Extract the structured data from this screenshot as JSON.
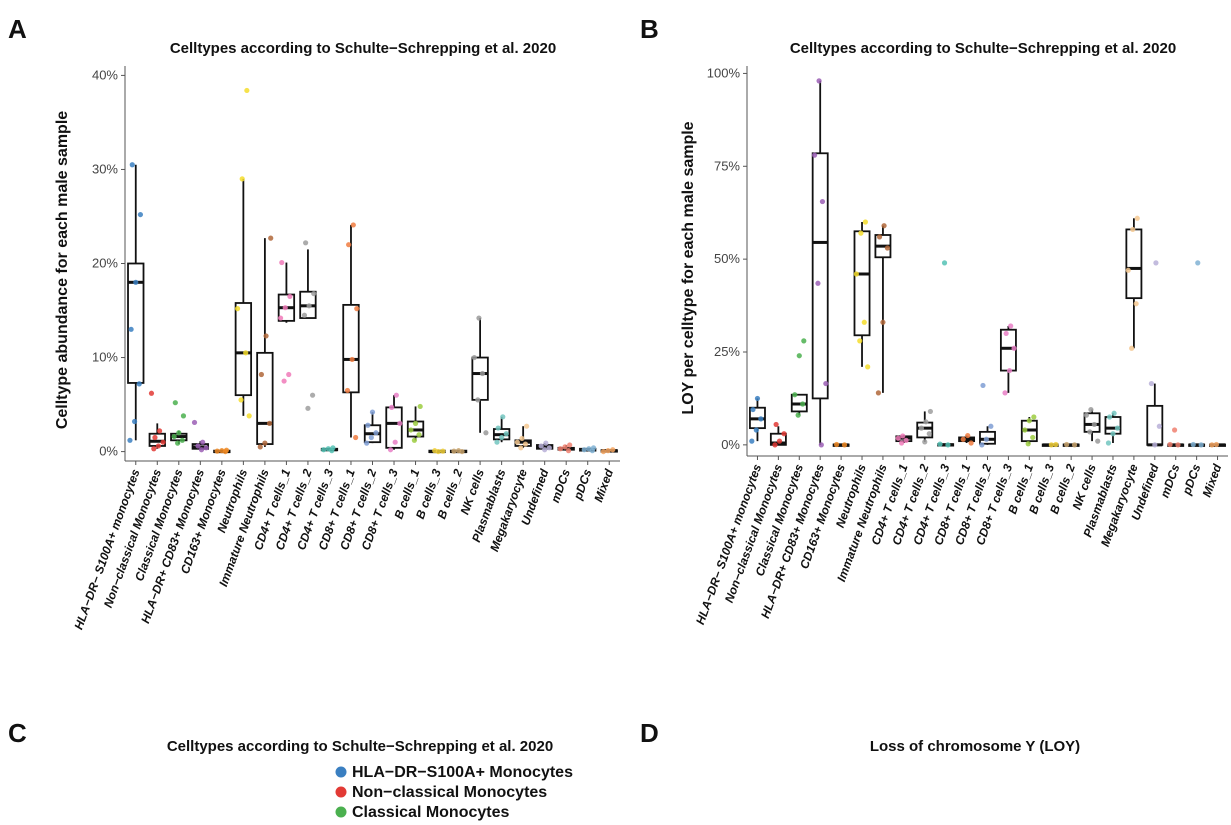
{
  "panels": {
    "A": "A",
    "B": "B",
    "C": "C",
    "D": "D"
  },
  "chart_data": [
    {
      "id": "A",
      "type": "box",
      "title": "Celltypes according to Schulte−Schrepping et al. 2020",
      "ylabel": "Celltype abundance for each male sample",
      "ylim": [
        -1,
        41
      ],
      "yticks": [
        0,
        10,
        20,
        30,
        40
      ],
      "ytick_labels": [
        "0%",
        "10%",
        "20%",
        "30%",
        "40%"
      ],
      "categories": [
        "HLA−DR− S100A+ monocytes",
        "Non−classical Monocytes",
        "Classical Monocytes",
        "HLA−DR+ CD83+ Monocytes",
        "CD163+ Monocytes",
        "Neutrophils",
        "Immature Neutrophils",
        "CD4+ T cells_1",
        "CD4+ T cells_2",
        "CD4+ T cells_3",
        "CD8+ T cells_1",
        "CD8+ T cells_2",
        "CD8+ T cells_3",
        "B cells_1",
        "B cells_3",
        "B cells_2",
        "NK cells",
        "Plasmablasts",
        "Megakaryocyte",
        "Undefined",
        "mDCs",
        "pDCs",
        "Mixed"
      ],
      "colors": [
        "#3a7fc1",
        "#e23a35",
        "#4bb04f",
        "#9b5fb5",
        "#f08a24",
        "#f5dd2b",
        "#b0673a",
        "#f07ab8",
        "#9e9e9e",
        "#55c2b5",
        "#f07b3f",
        "#7f9ed4",
        "#e87fc6",
        "#9ccc3f",
        "#f2d13a",
        "#c9a46e",
        "#9a9a9a",
        "#72c6c0",
        "#f5c890",
        "#b9b0d8",
        "#f08070",
        "#80b1d3",
        "#f4a460"
      ],
      "boxes": [
        {
          "min": 1.2,
          "q1": 7.3,
          "median": 18,
          "q3": 20,
          "max": 30.5,
          "points": [
            1.2,
            3.2,
            7.2,
            13,
            18,
            25.2,
            30.5
          ]
        },
        {
          "min": 0.3,
          "q1": 0.6,
          "median": 1.1,
          "q3": 1.9,
          "max": 3,
          "points": [
            0.3,
            0.6,
            1.0,
            1.5,
            2.2,
            6.2
          ]
        },
        {
          "min": 0.8,
          "q1": 1.2,
          "median": 1.6,
          "q3": 1.9,
          "max": 2.2,
          "points": [
            0.9,
            1.2,
            1.6,
            2.0,
            3.8,
            5.2
          ]
        },
        {
          "min": 0.2,
          "q1": 0.3,
          "median": 0.5,
          "q3": 0.8,
          "max": 1.1,
          "points": [
            0.2,
            0.4,
            0.6,
            1.0,
            3.1
          ]
        },
        {
          "min": 0.0,
          "q1": 0.0,
          "median": 0.0,
          "q3": 0.1,
          "max": 0.2,
          "points": [
            0.0,
            0.05,
            0.1,
            0.15
          ]
        },
        {
          "min": 3.8,
          "q1": 6.0,
          "median": 10.5,
          "q3": 15.8,
          "max": 29,
          "points": [
            3.8,
            5.5,
            10.5,
            15.2,
            29,
            38.4
          ]
        },
        {
          "min": 0.5,
          "q1": 0.8,
          "median": 3.0,
          "q3": 10.5,
          "max": 22.7,
          "points": [
            0.5,
            0.9,
            3,
            8.2,
            12.3,
            22.7
          ]
        },
        {
          "min": 13.7,
          "q1": 13.9,
          "median": 15.3,
          "q3": 16.7,
          "max": 20.1,
          "points": [
            7.5,
            8.2,
            14.2,
            15.3,
            16.5,
            20.1
          ]
        },
        {
          "min": 14.2,
          "q1": 14.2,
          "median": 15.5,
          "q3": 17.0,
          "max": 21.5,
          "points": [
            4.6,
            6.0,
            14.5,
            15.5,
            16.8,
            22.2
          ]
        },
        {
          "min": 0.1,
          "q1": 0.2,
          "median": 0.2,
          "q3": 0.3,
          "max": 0.4,
          "points": [
            0.1,
            0.2,
            0.3,
            0.4
          ]
        },
        {
          "min": 1.5,
          "q1": 6.3,
          "median": 9.8,
          "q3": 15.6,
          "max": 24.1,
          "points": [
            1.5,
            6.5,
            9.8,
            15.2,
            22,
            24.1
          ]
        },
        {
          "min": 0.9,
          "q1": 1.0,
          "median": 1.9,
          "q3": 2.8,
          "max": 4.2,
          "points": [
            0.9,
            1.5,
            2.0,
            2.8,
            4.2
          ]
        },
        {
          "min": 0.2,
          "q1": 0.4,
          "median": 3.0,
          "q3": 4.7,
          "max": 6.0,
          "points": [
            0.2,
            1.0,
            3.0,
            4.7,
            6.0
          ]
        },
        {
          "min": 1.2,
          "q1": 1.6,
          "median": 2.3,
          "q3": 3.2,
          "max": 4.8,
          "points": [
            1.2,
            1.8,
            2.3,
            3.0,
            4.8
          ]
        },
        {
          "min": 0.0,
          "q1": 0.0,
          "median": 0.0,
          "q3": 0.1,
          "max": 0.1,
          "points": [
            0.0,
            0.05,
            0.1
          ]
        },
        {
          "min": 0.0,
          "q1": 0.0,
          "median": 0.0,
          "q3": 0.1,
          "max": 0.1,
          "points": [
            0.0,
            0.05,
            0.1
          ]
        },
        {
          "min": 2.0,
          "q1": 5.5,
          "median": 8.3,
          "q3": 10.0,
          "max": 14.2,
          "points": [
            2.0,
            5.5,
            8.3,
            10.0,
            14.2
          ]
        },
        {
          "min": 1.0,
          "q1": 1.3,
          "median": 1.8,
          "q3": 2.4,
          "max": 3.7,
          "points": [
            1.0,
            1.5,
            1.9,
            2.5,
            3.7
          ]
        },
        {
          "min": 0.4,
          "q1": 0.6,
          "median": 1.0,
          "q3": 1.2,
          "max": 2.7,
          "points": [
            0.4,
            0.8,
            1.0,
            1.4,
            2.7
          ]
        },
        {
          "min": 0.2,
          "q1": 0.3,
          "median": 0.5,
          "q3": 0.7,
          "max": 0.9,
          "points": [
            0.2,
            0.4,
            0.6,
            0.9
          ]
        },
        {
          "min": 0.1,
          "q1": 0.2,
          "median": 0.3,
          "q3": 0.4,
          "max": 0.7,
          "points": [
            0.1,
            0.3,
            0.5,
            0.7
          ]
        },
        {
          "min": 0.1,
          "q1": 0.1,
          "median": 0.2,
          "q3": 0.3,
          "max": 0.4,
          "points": [
            0.1,
            0.2,
            0.3,
            0.4
          ]
        },
        {
          "min": 0.0,
          "q1": 0.05,
          "median": 0.1,
          "q3": 0.15,
          "max": 0.2,
          "points": [
            0.0,
            0.1,
            0.2
          ]
        }
      ]
    },
    {
      "id": "B",
      "type": "box",
      "title": "Celltypes according to Schulte−Schrepping et al. 2020",
      "ylabel": "LOY per celltype for each male sample",
      "ylim": [
        -3,
        102
      ],
      "yticks": [
        0,
        25,
        50,
        75,
        100
      ],
      "ytick_labels": [
        "0%",
        "25%",
        "50%",
        "75%",
        "100%"
      ],
      "categories": [
        "HLA−DR− S100A+ monocytes",
        "Non−classical Monocytes",
        "Classical Monocytes",
        "HLA−DR+ CD83+ Monocytes",
        "CD163+ Monocytes",
        "Neutrophils",
        "Immature Neutrophils",
        "CD4+ T cells_1",
        "CD4+ T cells_2",
        "CD4+ T cells_3",
        "CD8+ T cells_1",
        "CD8+ T cells_2",
        "CD8+ T cells_3",
        "B cells_1",
        "B cells_3",
        "B cells_2",
        "NK cells",
        "Plasmablasts",
        "Megakaryocyte",
        "Undefined",
        "mDCs",
        "pDCs",
        "Mixed"
      ],
      "colors": [
        "#3a7fc1",
        "#e23a35",
        "#4bb04f",
        "#9b5fb5",
        "#f08a24",
        "#f5dd2b",
        "#b0673a",
        "#f07ab8",
        "#9e9e9e",
        "#55c2b5",
        "#f07b3f",
        "#7f9ed4",
        "#e87fc6",
        "#9ccc3f",
        "#f2d13a",
        "#c9a46e",
        "#9a9a9a",
        "#72c6c0",
        "#f5c890",
        "#b9b0d8",
        "#f08070",
        "#80b1d3",
        "#f4a460"
      ],
      "boxes": [
        {
          "min": 1.0,
          "q1": 4.5,
          "median": 7.0,
          "q3": 10.0,
          "max": 12.5,
          "points": [
            1.0,
            4.0,
            7.0,
            9.5,
            12.5
          ]
        },
        {
          "min": 0.0,
          "q1": 0.0,
          "median": 0.5,
          "q3": 3.0,
          "max": 5.0,
          "points": [
            0.0,
            1.0,
            3.0,
            5.5
          ]
        },
        {
          "min": 8.0,
          "q1": 9.0,
          "median": 11.0,
          "q3": 13.5,
          "max": 13.5,
          "points": [
            8.0,
            11.0,
            13.5,
            24,
            28
          ]
        },
        {
          "min": 0.0,
          "q1": 12.5,
          "median": 54.5,
          "q3": 78.5,
          "max": 98.0,
          "points": [
            0.0,
            16.5,
            43.5,
            65.5,
            78,
            98
          ]
        },
        {
          "min": 0.0,
          "q1": 0.0,
          "median": 0.0,
          "q3": 0.1,
          "max": 0.2,
          "points": [
            0.0,
            0.1
          ]
        },
        {
          "min": 21.0,
          "q1": 29.5,
          "median": 46.0,
          "q3": 57.5,
          "max": 60.0,
          "points": [
            21,
            28,
            33,
            46,
            57,
            60
          ]
        },
        {
          "min": 14.0,
          "q1": 50.5,
          "median": 53.5,
          "q3": 56.5,
          "max": 59.0,
          "points": [
            14.0,
            33,
            53,
            56,
            59
          ]
        },
        {
          "min": 0.5,
          "q1": 1.0,
          "median": 1.8,
          "q3": 2.3,
          "max": 2.7,
          "points": [
            0.5,
            1.2,
            1.8,
            2.4
          ]
        },
        {
          "min": 0.8,
          "q1": 2.0,
          "median": 4.5,
          "q3": 6.0,
          "max": 9.0,
          "points": [
            0.8,
            3.0,
            4.5,
            6.2,
            9.0
          ]
        },
        {
          "min": 0.0,
          "q1": 0.0,
          "median": 0.0,
          "q3": 0.2,
          "max": 0.3,
          "points": [
            0.0,
            0.2,
            49.0
          ]
        },
        {
          "min": 0.5,
          "q1": 1.0,
          "median": 1.5,
          "q3": 2.0,
          "max": 2.5,
          "points": [
            0.5,
            1.5,
            2.5
          ]
        },
        {
          "min": 0.0,
          "q1": 0.3,
          "median": 1.5,
          "q3": 3.5,
          "max": 5.0,
          "points": [
            0.0,
            1.5,
            5.0,
            16.0
          ]
        },
        {
          "min": 14.0,
          "q1": 20.0,
          "median": 26.0,
          "q3": 31.0,
          "max": 32.0,
          "points": [
            14.0,
            20,
            26,
            30,
            32
          ]
        },
        {
          "min": 0.3,
          "q1": 1.0,
          "median": 4.0,
          "q3": 6.5,
          "max": 7.5,
          "points": [
            0.3,
            2.0,
            4.0,
            6.5,
            7.5
          ]
        },
        {
          "min": 0.0,
          "q1": 0.0,
          "median": 0.0,
          "q3": 0.1,
          "max": 0.2,
          "points": [
            0.0,
            0.1
          ]
        },
        {
          "min": 0.0,
          "q1": 0.0,
          "median": 0.0,
          "q3": 0.1,
          "max": 0.2,
          "points": [
            0.0,
            0.1
          ]
        },
        {
          "min": 1.0,
          "q1": 3.5,
          "median": 5.5,
          "q3": 8.5,
          "max": 9.5,
          "points": [
            1.0,
            3.5,
            5.5,
            8.0,
            9.5
          ]
        },
        {
          "min": 0.5,
          "q1": 3.0,
          "median": 4.5,
          "q3": 7.5,
          "max": 8.5,
          "points": [
            0.5,
            3.0,
            4.5,
            7.5,
            8.5
          ]
        },
        {
          "min": 26.0,
          "q1": 39.5,
          "median": 47.5,
          "q3": 58.0,
          "max": 61.0,
          "points": [
            26,
            38,
            47,
            58,
            61
          ]
        },
        {
          "min": 0.0,
          "q1": 0.0,
          "median": 0.0,
          "q3": 10.5,
          "max": 16.5,
          "points": [
            0.0,
            5.0,
            16.5,
            49.0
          ]
        },
        {
          "min": 0.0,
          "q1": 0.0,
          "median": 0.0,
          "q3": 0.1,
          "max": 0.2,
          "points": [
            0.0,
            0.1,
            4.0
          ]
        },
        {
          "min": 0.0,
          "q1": 0.0,
          "median": 0.0,
          "q3": 0.1,
          "max": 0.2,
          "points": [
            0.0,
            0.1,
            49.0
          ]
        },
        {
          "min": 0.0,
          "q1": 0.0,
          "median": 0.0,
          "q3": 0.1,
          "max": 0.2,
          "points": [
            0.0,
            0.1
          ]
        }
      ]
    }
  ],
  "panel_c": {
    "title": "Celltypes according to Schulte−Schrepping et al. 2020",
    "legend": [
      {
        "label": "HLA−DR−S100A+ Monocytes",
        "color": "#3a7fc1"
      },
      {
        "label": "Non−classical Monocytes",
        "color": "#e23a35"
      },
      {
        "label": "Classical Monocytes",
        "color": "#4bb04f"
      }
    ]
  },
  "panel_d": {
    "title": "Loss of chromosome Y (LOY)"
  }
}
